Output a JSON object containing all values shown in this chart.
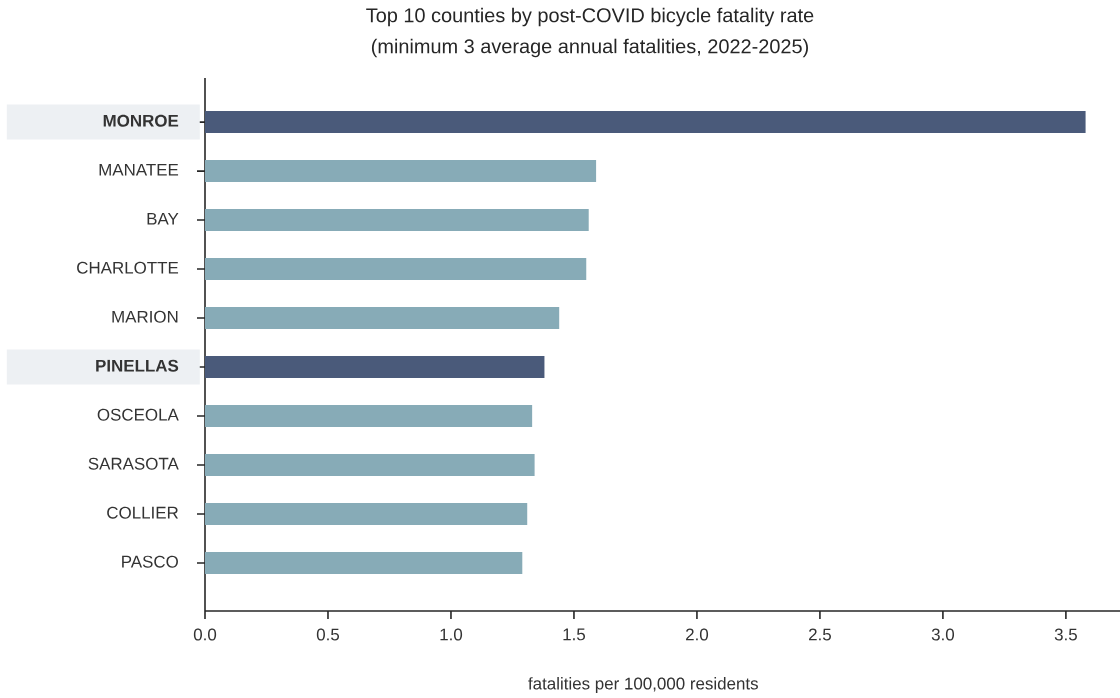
{
  "chart_data": {
    "type": "bar",
    "orientation": "horizontal",
    "title": "Top 10 counties by post-COVID bicycle fatality rate",
    "subtitle": "(minimum 3 average annual fatalities, 2022-2025)",
    "xlabel": "fatalities per 100,000 residents",
    "categories": [
      "MONROE",
      "MANATEE",
      "BAY",
      "CHARLOTTE",
      "MARION",
      "PINELLAS",
      "OSCEOLA",
      "SARASOTA",
      "COLLIER",
      "PASCO"
    ],
    "values": [
      3.58,
      1.59,
      1.56,
      1.55,
      1.44,
      1.38,
      1.33,
      1.34,
      1.31,
      1.29
    ],
    "colors": [
      "#4a5a7a",
      "#87abb7",
      "#87abb7",
      "#87abb7",
      "#87abb7",
      "#4a5a7a",
      "#87abb7",
      "#87abb7",
      "#87abb7",
      "#87abb7"
    ],
    "xlim": [
      0,
      3.72
    ],
    "xticks": [
      {
        "value": 0,
        "label": "0.0"
      },
      0.5,
      {
        "value": 1,
        "label": "1.0"
      },
      1.5,
      {
        "value": 2,
        "label": "2.0"
      },
      2.5,
      {
        "value": 3,
        "label": "3.0"
      },
      3.5
    ],
    "grid": false
  }
}
